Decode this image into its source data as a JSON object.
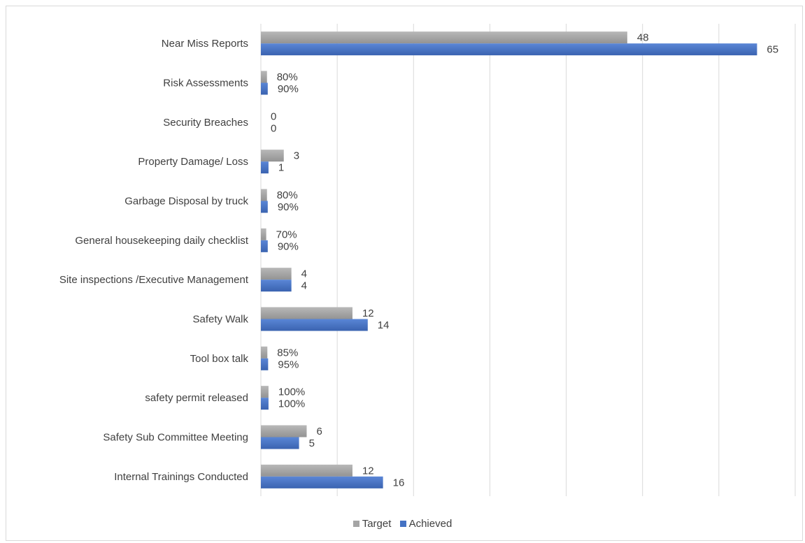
{
  "chart_data": {
    "type": "bar",
    "orientation": "horizontal",
    "title": "",
    "xlabel": "",
    "ylabel": "",
    "categories": [
      "Near Miss Reports",
      "Risk Assessments",
      "Security Breaches",
      "Property Damage/ Loss",
      "Garbage Disposal by truck",
      "General housekeeping daily checklist",
      "Site inspections /Executive Management",
      "Safety Walk",
      "Tool box talk",
      "safety permit released",
      "Safety Sub Committee Meeting",
      "Internal Trainings Conducted"
    ],
    "series": [
      {
        "name": "Target",
        "color": "#a5a5a5",
        "values": [
          48,
          0.8,
          0,
          3,
          0.8,
          0.7,
          4,
          12,
          0.85,
          1,
          6,
          12
        ],
        "labels": [
          "48",
          "80%",
          "0",
          "3",
          "80%",
          "70%",
          "4",
          "12",
          "85%",
          "100%",
          "6",
          "12"
        ]
      },
      {
        "name": "Achieved",
        "color": "#4472c4",
        "values": [
          65,
          0.9,
          0,
          1,
          0.9,
          0.9,
          4,
          14,
          0.95,
          1,
          5,
          16
        ],
        "labels": [
          "65",
          "90%",
          "0",
          "1",
          "90%",
          "90%",
          "4",
          "14",
          "95%",
          "100%",
          "5",
          "16"
        ]
      }
    ],
    "xlim": [
      0,
      70
    ],
    "x_grid_step": 10,
    "grid": true,
    "legend_position": "bottom"
  }
}
